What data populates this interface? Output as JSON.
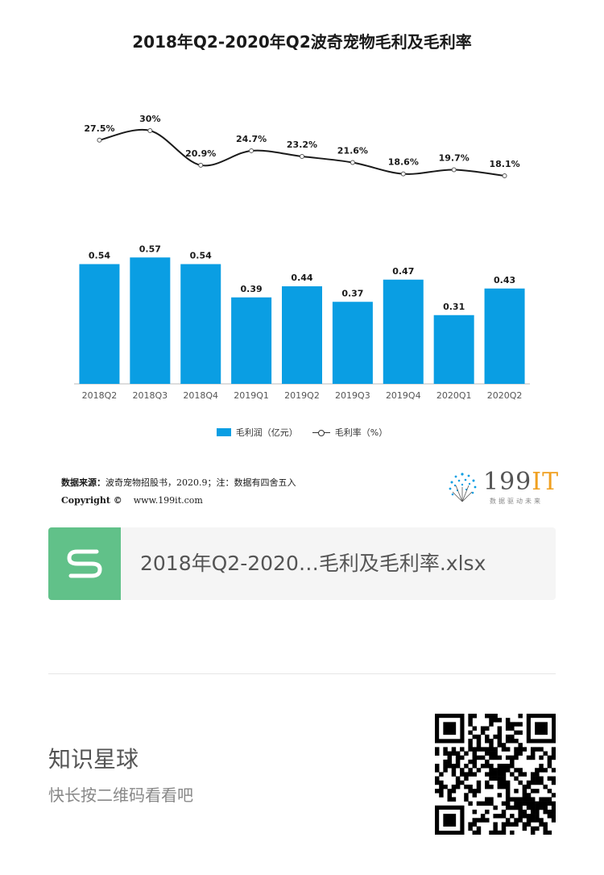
{
  "chart_data": {
    "type": "bar",
    "title": "2018年Q2-2020年Q2波奇宠物毛利及毛利率",
    "categories": [
      "2018Q2",
      "2018Q3",
      "2018Q4",
      "2019Q1",
      "2019Q2",
      "2019Q3",
      "2019Q4",
      "2020Q1",
      "2020Q2"
    ],
    "series": [
      {
        "name": "毛利润（亿元）",
        "type": "bar",
        "color": "#0a9ee3",
        "values": [
          0.54,
          0.57,
          0.54,
          0.39,
          0.44,
          0.37,
          0.47,
          0.31,
          0.43
        ],
        "labels": [
          "0.54",
          "0.57",
          "0.54",
          "0.39",
          "0.44",
          "0.37",
          "0.47",
          "0.31",
          "0.43"
        ]
      },
      {
        "name": "毛利率（%）",
        "type": "line",
        "color": "#1a1a1a",
        "values": [
          27.5,
          30,
          20.9,
          24.7,
          23.2,
          21.6,
          18.6,
          19.7,
          18.1
        ],
        "labels": [
          "27.5%",
          "30%",
          "20.9%",
          "24.7%",
          "23.2%",
          "21.6%",
          "18.6%",
          "19.7%",
          "18.1%"
        ]
      }
    ],
    "legend_position": "bottom",
    "grid": false
  },
  "source": {
    "label": "数据来源：",
    "text": "波奇宠物招股书，2020.9；注：数据有四舍五入",
    "copyright": "Copyright ©",
    "website": "www.199it.com"
  },
  "logo": {
    "num": "199",
    "it": "IT",
    "sub": "数据驱动未来"
  },
  "file": {
    "name": "2018年Q2-2020…毛利及毛利率.xlsx",
    "icon": "spreadsheet-s-icon"
  },
  "planet": {
    "title": "知识星球",
    "subtitle": "快长按二维码看看吧"
  },
  "colors": {
    "bar": "#0a9ee3",
    "file_icon": "#61c189"
  }
}
